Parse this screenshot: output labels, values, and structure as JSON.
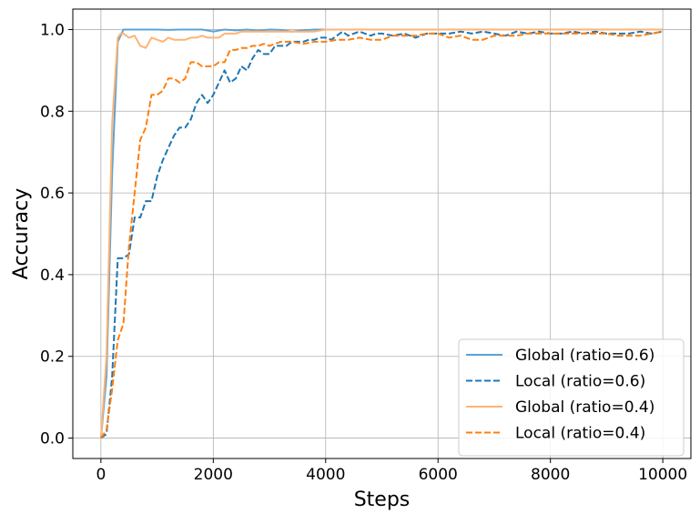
{
  "chart_data": {
    "type": "line",
    "title": "",
    "xlabel": "Steps",
    "ylabel": "Accuracy",
    "xlim": [
      -500,
      10500
    ],
    "ylim": [
      -0.05,
      1.05
    ],
    "xticks": [
      0,
      2000,
      4000,
      6000,
      8000,
      10000
    ],
    "yticks": [
      0.0,
      0.2,
      0.4,
      0.6,
      0.8,
      1.0
    ],
    "xtick_labels": [
      "0",
      "2000",
      "4000",
      "6000",
      "8000",
      "10000"
    ],
    "ytick_labels": [
      "0.0",
      "0.2",
      "0.4",
      "0.6",
      "0.8",
      "1.0"
    ],
    "grid": true,
    "legend_position": "lower-right",
    "series": [
      {
        "name": "Global (ratio=0.6)",
        "color": "#5aa3d8",
        "style": "solid",
        "x": [
          0,
          100,
          200,
          300,
          400,
          500,
          600,
          800,
          1000,
          1200,
          1400,
          1600,
          1800,
          2000,
          2200,
          2400,
          2600,
          2800,
          3000,
          3200,
          3400,
          3600,
          3800,
          4000,
          4500,
          5000,
          5500,
          6000,
          6500,
          7000,
          7500,
          8000,
          8500,
          9000,
          9500,
          10000
        ],
        "y": [
          0.0,
          0.15,
          0.65,
          0.97,
          1.0,
          1.0,
          1.0,
          1.0,
          1.0,
          0.999,
          1.0,
          1.0,
          1.0,
          0.995,
          1.0,
          0.998,
          1.0,
          0.997,
          1.0,
          0.999,
          0.995,
          0.998,
          1.0,
          1.0,
          1.0,
          1.0,
          1.0,
          1.0,
          1.0,
          1.0,
          1.0,
          1.0,
          1.0,
          1.0,
          1.0,
          1.0
        ]
      },
      {
        "name": "Local (ratio=0.6)",
        "color": "#1f77b4",
        "style": "dashed",
        "x": [
          0,
          100,
          200,
          300,
          400,
          500,
          600,
          700,
          800,
          900,
          1000,
          1100,
          1200,
          1300,
          1400,
          1500,
          1600,
          1700,
          1800,
          1900,
          2000,
          2100,
          2200,
          2300,
          2400,
          2500,
          2600,
          2700,
          2800,
          2900,
          3000,
          3100,
          3200,
          3300,
          3400,
          3500,
          3600,
          3700,
          3800,
          3900,
          4000,
          4100,
          4200,
          4300,
          4400,
          4500,
          4600,
          4700,
          4800,
          4900,
          5000,
          5200,
          5400,
          5600,
          5800,
          6000,
          6200,
          6400,
          6600,
          6800,
          7000,
          7200,
          7400,
          7600,
          7800,
          8000,
          8200,
          8400,
          8600,
          8800,
          9000,
          9200,
          9400,
          9600,
          9800,
          10000
        ],
        "y": [
          0.0,
          0.01,
          0.15,
          0.44,
          0.44,
          0.45,
          0.54,
          0.54,
          0.58,
          0.58,
          0.64,
          0.68,
          0.71,
          0.74,
          0.76,
          0.76,
          0.78,
          0.82,
          0.84,
          0.82,
          0.84,
          0.87,
          0.9,
          0.87,
          0.88,
          0.91,
          0.9,
          0.93,
          0.95,
          0.94,
          0.94,
          0.96,
          0.96,
          0.96,
          0.97,
          0.97,
          0.97,
          0.975,
          0.975,
          0.98,
          0.98,
          0.975,
          0.985,
          0.995,
          0.985,
          0.99,
          0.995,
          0.99,
          0.985,
          0.99,
          0.99,
          0.985,
          0.99,
          0.98,
          0.99,
          0.99,
          0.99,
          0.995,
          0.99,
          0.995,
          0.99,
          0.985,
          0.995,
          0.99,
          0.995,
          0.99,
          0.99,
          0.995,
          0.99,
          0.995,
          0.99,
          0.99,
          0.99,
          0.995,
          0.99,
          0.995
        ]
      },
      {
        "name": "Global (ratio=0.4)",
        "color": "#ffb373",
        "style": "solid",
        "x": [
          0,
          100,
          200,
          300,
          350,
          400,
          500,
          600,
          700,
          800,
          900,
          1000,
          1100,
          1200,
          1300,
          1400,
          1500,
          1600,
          1700,
          1800,
          1900,
          2000,
          2100,
          2200,
          2300,
          2400,
          2500,
          2600,
          2800,
          3000,
          3200,
          3400,
          3600,
          3800,
          4000,
          4500,
          5000,
          5500,
          6000,
          6500,
          7000,
          7500,
          8000,
          8500,
          9000,
          9500,
          10000
        ],
        "y": [
          0.0,
          0.2,
          0.77,
          0.98,
          0.99,
          0.99,
          0.98,
          0.985,
          0.96,
          0.955,
          0.98,
          0.975,
          0.97,
          0.98,
          0.975,
          0.975,
          0.975,
          0.98,
          0.98,
          0.985,
          0.98,
          0.98,
          0.98,
          0.99,
          0.99,
          0.99,
          0.995,
          0.995,
          0.995,
          0.995,
          0.995,
          0.995,
          0.995,
          0.995,
          1.0,
          1.0,
          1.0,
          1.0,
          1.0,
          1.0,
          1.0,
          1.0,
          1.0,
          1.0,
          1.0,
          1.0,
          1.0
        ]
      },
      {
        "name": "Local (ratio=0.4)",
        "color": "#ff7f0e",
        "style": "dashed",
        "x": [
          0,
          100,
          200,
          300,
          400,
          500,
          600,
          700,
          800,
          900,
          1000,
          1100,
          1200,
          1300,
          1400,
          1500,
          1600,
          1700,
          1800,
          1900,
          2000,
          2100,
          2200,
          2300,
          2400,
          2500,
          2600,
          2700,
          2800,
          2900,
          3000,
          3200,
          3400,
          3600,
          3800,
          4000,
          4200,
          4400,
          4600,
          4800,
          5000,
          5200,
          5400,
          5600,
          5800,
          6000,
          6200,
          6400,
          6600,
          6800,
          7000,
          7200,
          7400,
          7600,
          7800,
          8000,
          8200,
          8400,
          8600,
          8800,
          9000,
          9200,
          9400,
          9600,
          9800,
          10000
        ],
        "y": [
          0.0,
          0.02,
          0.12,
          0.24,
          0.28,
          0.47,
          0.6,
          0.73,
          0.76,
          0.84,
          0.84,
          0.85,
          0.88,
          0.88,
          0.87,
          0.88,
          0.92,
          0.92,
          0.91,
          0.91,
          0.91,
          0.92,
          0.92,
          0.95,
          0.95,
          0.955,
          0.955,
          0.96,
          0.96,
          0.965,
          0.96,
          0.97,
          0.97,
          0.965,
          0.97,
          0.97,
          0.975,
          0.975,
          0.98,
          0.975,
          0.975,
          0.985,
          0.985,
          0.985,
          0.99,
          0.99,
          0.98,
          0.985,
          0.975,
          0.975,
          0.985,
          0.985,
          0.985,
          0.99,
          0.99,
          0.99,
          0.99,
          0.99,
          0.99,
          0.99,
          0.99,
          0.985,
          0.985,
          0.985,
          0.99,
          0.995
        ]
      }
    ]
  }
}
